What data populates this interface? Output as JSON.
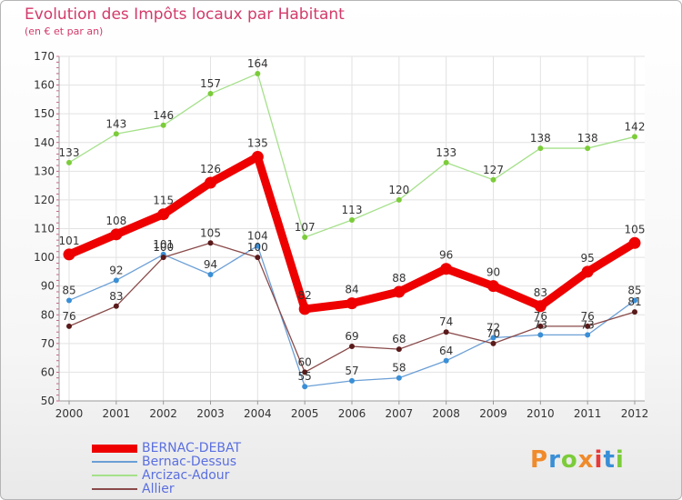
{
  "chart_data": {
    "type": "line",
    "title": "Evolution des Impôts locaux par Habitant",
    "subtitle": "(en € et par an)",
    "x": [
      "2000",
      "2001",
      "2002",
      "2003",
      "2004",
      "2005",
      "2006",
      "2007",
      "2008",
      "2009",
      "2010",
      "2011",
      "2012"
    ],
    "ylim": [
      50,
      170
    ],
    "yticks": [
      50,
      60,
      70,
      80,
      90,
      100,
      110,
      120,
      130,
      140,
      150,
      160,
      170
    ],
    "grid": true,
    "legend_position": "bottom-left",
    "series": [
      {
        "name": "BERNAC-DEBAT",
        "color": "#ee0000",
        "values": [
          101,
          108,
          115,
          126,
          135,
          82,
          84,
          88,
          96,
          90,
          83,
          95,
          105
        ]
      },
      {
        "name": "Bernac-Dessus",
        "color": "#6b9fd6",
        "marker": "#3a8fd6",
        "values": [
          85,
          92,
          101,
          94,
          104,
          55,
          57,
          58,
          64,
          72,
          73,
          73,
          85
        ]
      },
      {
        "name": "Arcizac-Adour",
        "color": "#a5e08a",
        "marker": "#7ccc3a",
        "values": [
          133,
          143,
          146,
          157,
          164,
          107,
          113,
          120,
          133,
          127,
          138,
          138,
          142
        ]
      },
      {
        "name": "Allier",
        "color": "#8a4a4a",
        "marker": "#5a1a1a",
        "values": [
          76,
          83,
          100,
          105,
          100,
          60,
          69,
          68,
          74,
          70,
          76,
          76,
          81
        ]
      }
    ]
  },
  "logo": {
    "text": "Proxiti",
    "letter_colors": [
      "#f08a2a",
      "#3a8fd6",
      "#7ccc3a",
      "#f08a2a",
      "#e83a3a",
      "#3a8fd6",
      "#7ccc3a"
    ]
  }
}
